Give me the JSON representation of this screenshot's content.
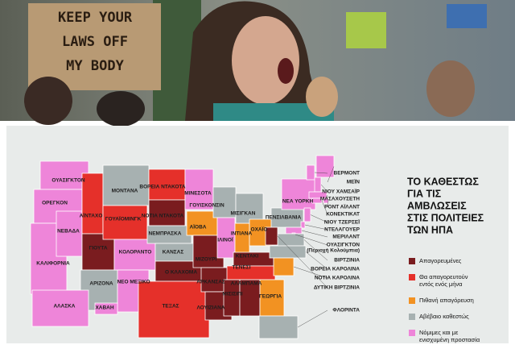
{
  "photo": {
    "sign_lines": [
      "KEEP YOUR",
      "LAWS OFF",
      "MY BODY"
    ]
  },
  "title_lines": [
    "ΤΟ ΚΑΘΕΣΤΩΣ",
    "ΓΙΑ ΤΙΣ",
    "ΑΜΒΛΩΣΕΙΣ",
    "ΣΤΙΣ ΠΟΛΙΤΕΙΕΣ",
    "ΤΩΝ ΗΠΑ"
  ],
  "legend": [
    {
      "lines": [
        "Απαγορευμένες"
      ],
      "color": "#7a1c1f"
    },
    {
      "lines": [
        "Θα απαγορευτούν",
        "εντός ενός μήνα"
      ],
      "color": "#e5302a"
    },
    {
      "lines": [
        "Πιθανή απαγόρευση"
      ],
      "color": "#f29222"
    },
    {
      "lines": [
        "Αβέβαιο καθεστώς"
      ],
      "color": "#a7b1b1"
    },
    {
      "lines": [
        "Νόμιμες και με",
        "ενισχυμένη προστασία"
      ],
      "color": "#ee85d9"
    }
  ],
  "states": [
    {
      "label": "ΟΥΑΣΙΓΚΤΟΝ",
      "status": 4
    },
    {
      "label": "ΟΡΕΓΚΟΝ",
      "status": 4
    },
    {
      "label": "ΚΑΛΙΦΟΡΝΙΑ",
      "status": 4
    },
    {
      "label": "ΝΕΒΑΔΑ",
      "status": 4
    },
    {
      "label": "ΑΪΝΤΑΧΟ",
      "status": 1
    },
    {
      "label": "ΓΙΟΥΤΑ",
      "status": 0
    },
    {
      "label": "ΑΡΙΖΟΝΑ",
      "status": 3
    },
    {
      "label": "ΜΟΝΤΑΝΑ",
      "status": 3
    },
    {
      "label": "ΓΟΥΑΪΟΜΙΝΓΚ",
      "status": 1
    },
    {
      "label": "ΚΟΛΟΡΑΝΤΟ",
      "status": 4
    },
    {
      "label": "ΝΕΟ ΜΕΞΙΚΟ",
      "status": 4
    },
    {
      "label": "ΒΟΡΕΙΑ ΝΤΑΚΟΤΑ",
      "status": 1
    },
    {
      "label": "ΝΟΤΙΑ ΝΤΑΚΟΤΑ",
      "status": 0
    },
    {
      "label": "ΝΕΜΠΡΑΣΚΑ",
      "status": 3
    },
    {
      "label": "ΚΑΝΣΑΣ",
      "status": 3
    },
    {
      "label": "Ο ΚΛΑΧΟΜΑ",
      "status": 0
    },
    {
      "label": "ΤΕΞΑΣ",
      "status": 1
    },
    {
      "label": "ΜΙΝΕΣΟΤΑ",
      "status": 4
    },
    {
      "label": "ΑΪΟΒΑ",
      "status": 2
    },
    {
      "label": "ΜΙΖΟΥΡΙ",
      "status": 0
    },
    {
      "label": "ΑΡΚΑΝΣΑΣ",
      "status": 0
    },
    {
      "label": "ΛΟΥΙΖΙΑΝΑ",
      "status": 0
    },
    {
      "label": "ΓΟΥΙΣΚΟΝΣΙΝ",
      "status": 3
    },
    {
      "label": "ΙΛΙΝΟΪ",
      "status": 4
    },
    {
      "label": "ΙΝΤΙΑΝΑ",
      "status": 2
    },
    {
      "label": "ΜΙΣΙΓΚΑΝ",
      "status": 3
    },
    {
      "label": "ΟΧΑΪΟ",
      "status": 2
    },
    {
      "label": "ΚΕΝΤΑΚΙ",
      "status": 0
    },
    {
      "label": "ΤΕΝΕΣΙ",
      "status": 1
    },
    {
      "label": "ΜΙΣΙΣΙΠΙ",
      "status": 0
    },
    {
      "label": "ΑΛΑΜΠΑΜΑ",
      "status": 0
    },
    {
      "label": "ΓΕΩΡΓΙΑ",
      "status": 2
    },
    {
      "label": "ΠΕΝΣΙΛΒΑΝΙΑ",
      "status": 3
    },
    {
      "label": "ΝΕΑ ΥΟΡΚΗ",
      "status": 4
    },
    {
      "label": "ΑΛΑΣΚΑ",
      "status": 4
    },
    {
      "label": "ΧΑΒΑΗ",
      "status": 4
    },
    {
      "label": "ΒΕΡΜΟΝΤ",
      "status": 4
    },
    {
      "label": "ΜΕΪΝ",
      "status": 4
    },
    {
      "label": "ΝΙΟΥ ΧΑΜΣΑΪΡ",
      "status": 4
    },
    {
      "label": "ΜΑΣΑΧΟΥΣΕΤΗ",
      "status": 4
    },
    {
      "label": "ΡΟΝΤ ΑΪΛΑΝΤ",
      "status": 4
    },
    {
      "label": "ΚΟΝΕΚΤΙΚΑΤ",
      "status": 4
    },
    {
      "label": "ΝΙΟΥ ΤΖΕΡΣΕΪ",
      "status": 4
    },
    {
      "label": "ΝΤΕΛΑΓΟΥΕΡ",
      "status": 4
    },
    {
      "label": "ΜΕΡΙΛΑΝΤ",
      "status": 4
    },
    {
      "label": "ΟΥΑΣΙΓΚΤΟΝ",
      "note": "(Περιοχή Κολούμπια)",
      "status": 4
    },
    {
      "label": "ΒΙΡΤΖΙΝΙΑ",
      "status": 3
    },
    {
      "label": "ΒΟΡΕΙΑ ΚΑΡΟΛΙΝΑ",
      "status": 3
    },
    {
      "label": "ΝΟΤΙΑ ΚΑΡΟΛΙΝΑ",
      "status": 2
    },
    {
      "label": "ΔΥΤΙΚΗ ΒΙΡΤΖΙΝΙΑ",
      "status": 0
    },
    {
      "label": "ΦΛΟΡΙΝΤΑ",
      "status": 3
    }
  ]
}
